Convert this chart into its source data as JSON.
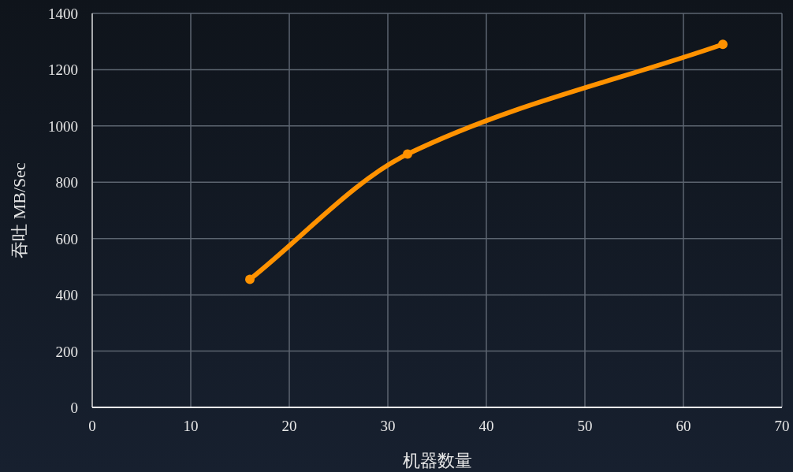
{
  "chart_data": {
    "type": "line",
    "xlabel": "机器数量",
    "ylabel": "吞吐 MB/Sec",
    "x": [
      16,
      32,
      64
    ],
    "series": [
      {
        "color": "#ff9200",
        "values": [
          455,
          900,
          1290
        ]
      }
    ],
    "xlim": [
      0,
      70
    ],
    "ylim": [
      0,
      1400
    ],
    "xticks": [
      0,
      10,
      20,
      30,
      40,
      50,
      60,
      70
    ],
    "yticks": [
      0,
      200,
      400,
      600,
      800,
      1000,
      1200,
      1400
    ],
    "grid": true,
    "marker": "circle"
  }
}
